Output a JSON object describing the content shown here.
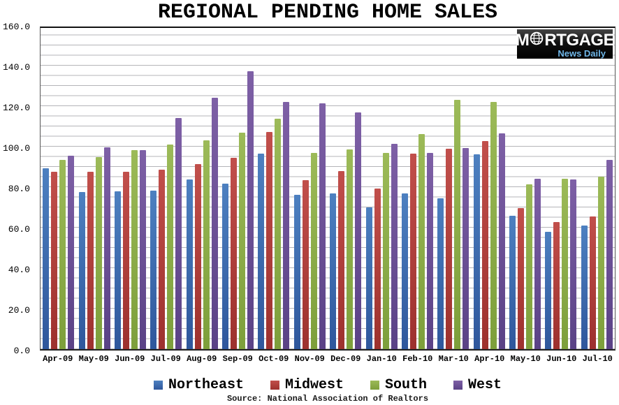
{
  "title": "REGIONAL PENDING HOME SALES",
  "logo": {
    "brand_m": "M",
    "brand_rest": "RTGAGE",
    "brand_full": "MORTGAGE",
    "subtitle": "News Daily"
  },
  "source": "Source: National Association of Realtors",
  "colors": {
    "gridline": "#b4b4b8",
    "axis": "#222222",
    "background": "#ffffff",
    "logo_background": "#000000",
    "logo_subtitle": "#6fb7e9"
  },
  "chart_data": {
    "type": "bar",
    "title": "REGIONAL PENDING HOME SALES",
    "xlabel": "",
    "ylabel": "",
    "ylim": [
      0,
      160
    ],
    "ytick_step": 20,
    "minor_grid_step": 5,
    "grid": true,
    "legend_position": "bottom",
    "yticks": [
      "160.0",
      "140.0",
      "120.0",
      "100.0",
      "80.0",
      "60.0",
      "40.0",
      "20.0",
      "0.0"
    ],
    "categories": [
      "Apr-09",
      "May-09",
      "Jun-09",
      "Jul-09",
      "Aug-09",
      "Sep-09",
      "Oct-09",
      "Nov-09",
      "Dec-09",
      "Jan-10",
      "Feb-10",
      "Mar-10",
      "Apr-10",
      "May-10",
      "Jun-10",
      "Jul-10"
    ],
    "series": [
      {
        "name": "Northeast",
        "color": "#3a6cb3",
        "color_top": "#4d80c0",
        "color_bottom": "#2f579c",
        "values": [
          90.2,
          78.3,
          78.6,
          78.8,
          84.6,
          82.4,
          97.5,
          77.0,
          77.7,
          70.7,
          77.5,
          75.2,
          97.2,
          66.4,
          58.4,
          61.7
        ]
      },
      {
        "name": "Midwest",
        "color": "#b23a37",
        "color_top": "#c14f4b",
        "color_bottom": "#9d312e",
        "values": [
          88.2,
          88.5,
          88.4,
          89.5,
          92.2,
          95.4,
          108.3,
          84.3,
          88.7,
          80.1,
          97.4,
          99.8,
          103.8,
          70.2,
          63.3,
          66.2
        ]
      },
      {
        "name": "South",
        "color": "#8aad43",
        "color_top": "#9cba58",
        "color_bottom": "#7d9f3b",
        "values": [
          94.4,
          95.7,
          99.3,
          101.8,
          104.1,
          108.0,
          114.9,
          97.9,
          99.4,
          97.6,
          107.0,
          124.2,
          123.2,
          82.0,
          84.8,
          85.9
        ]
      },
      {
        "name": "West",
        "color": "#6b4d93",
        "color_top": "#7e60a6",
        "color_bottom": "#5a4286",
        "values": [
          96.2,
          100.4,
          99.0,
          115.0,
          125.3,
          138.6,
          123.3,
          122.6,
          117.9,
          102.3,
          97.8,
          100.2,
          107.5,
          84.8,
          84.6,
          94.4
        ]
      }
    ]
  }
}
